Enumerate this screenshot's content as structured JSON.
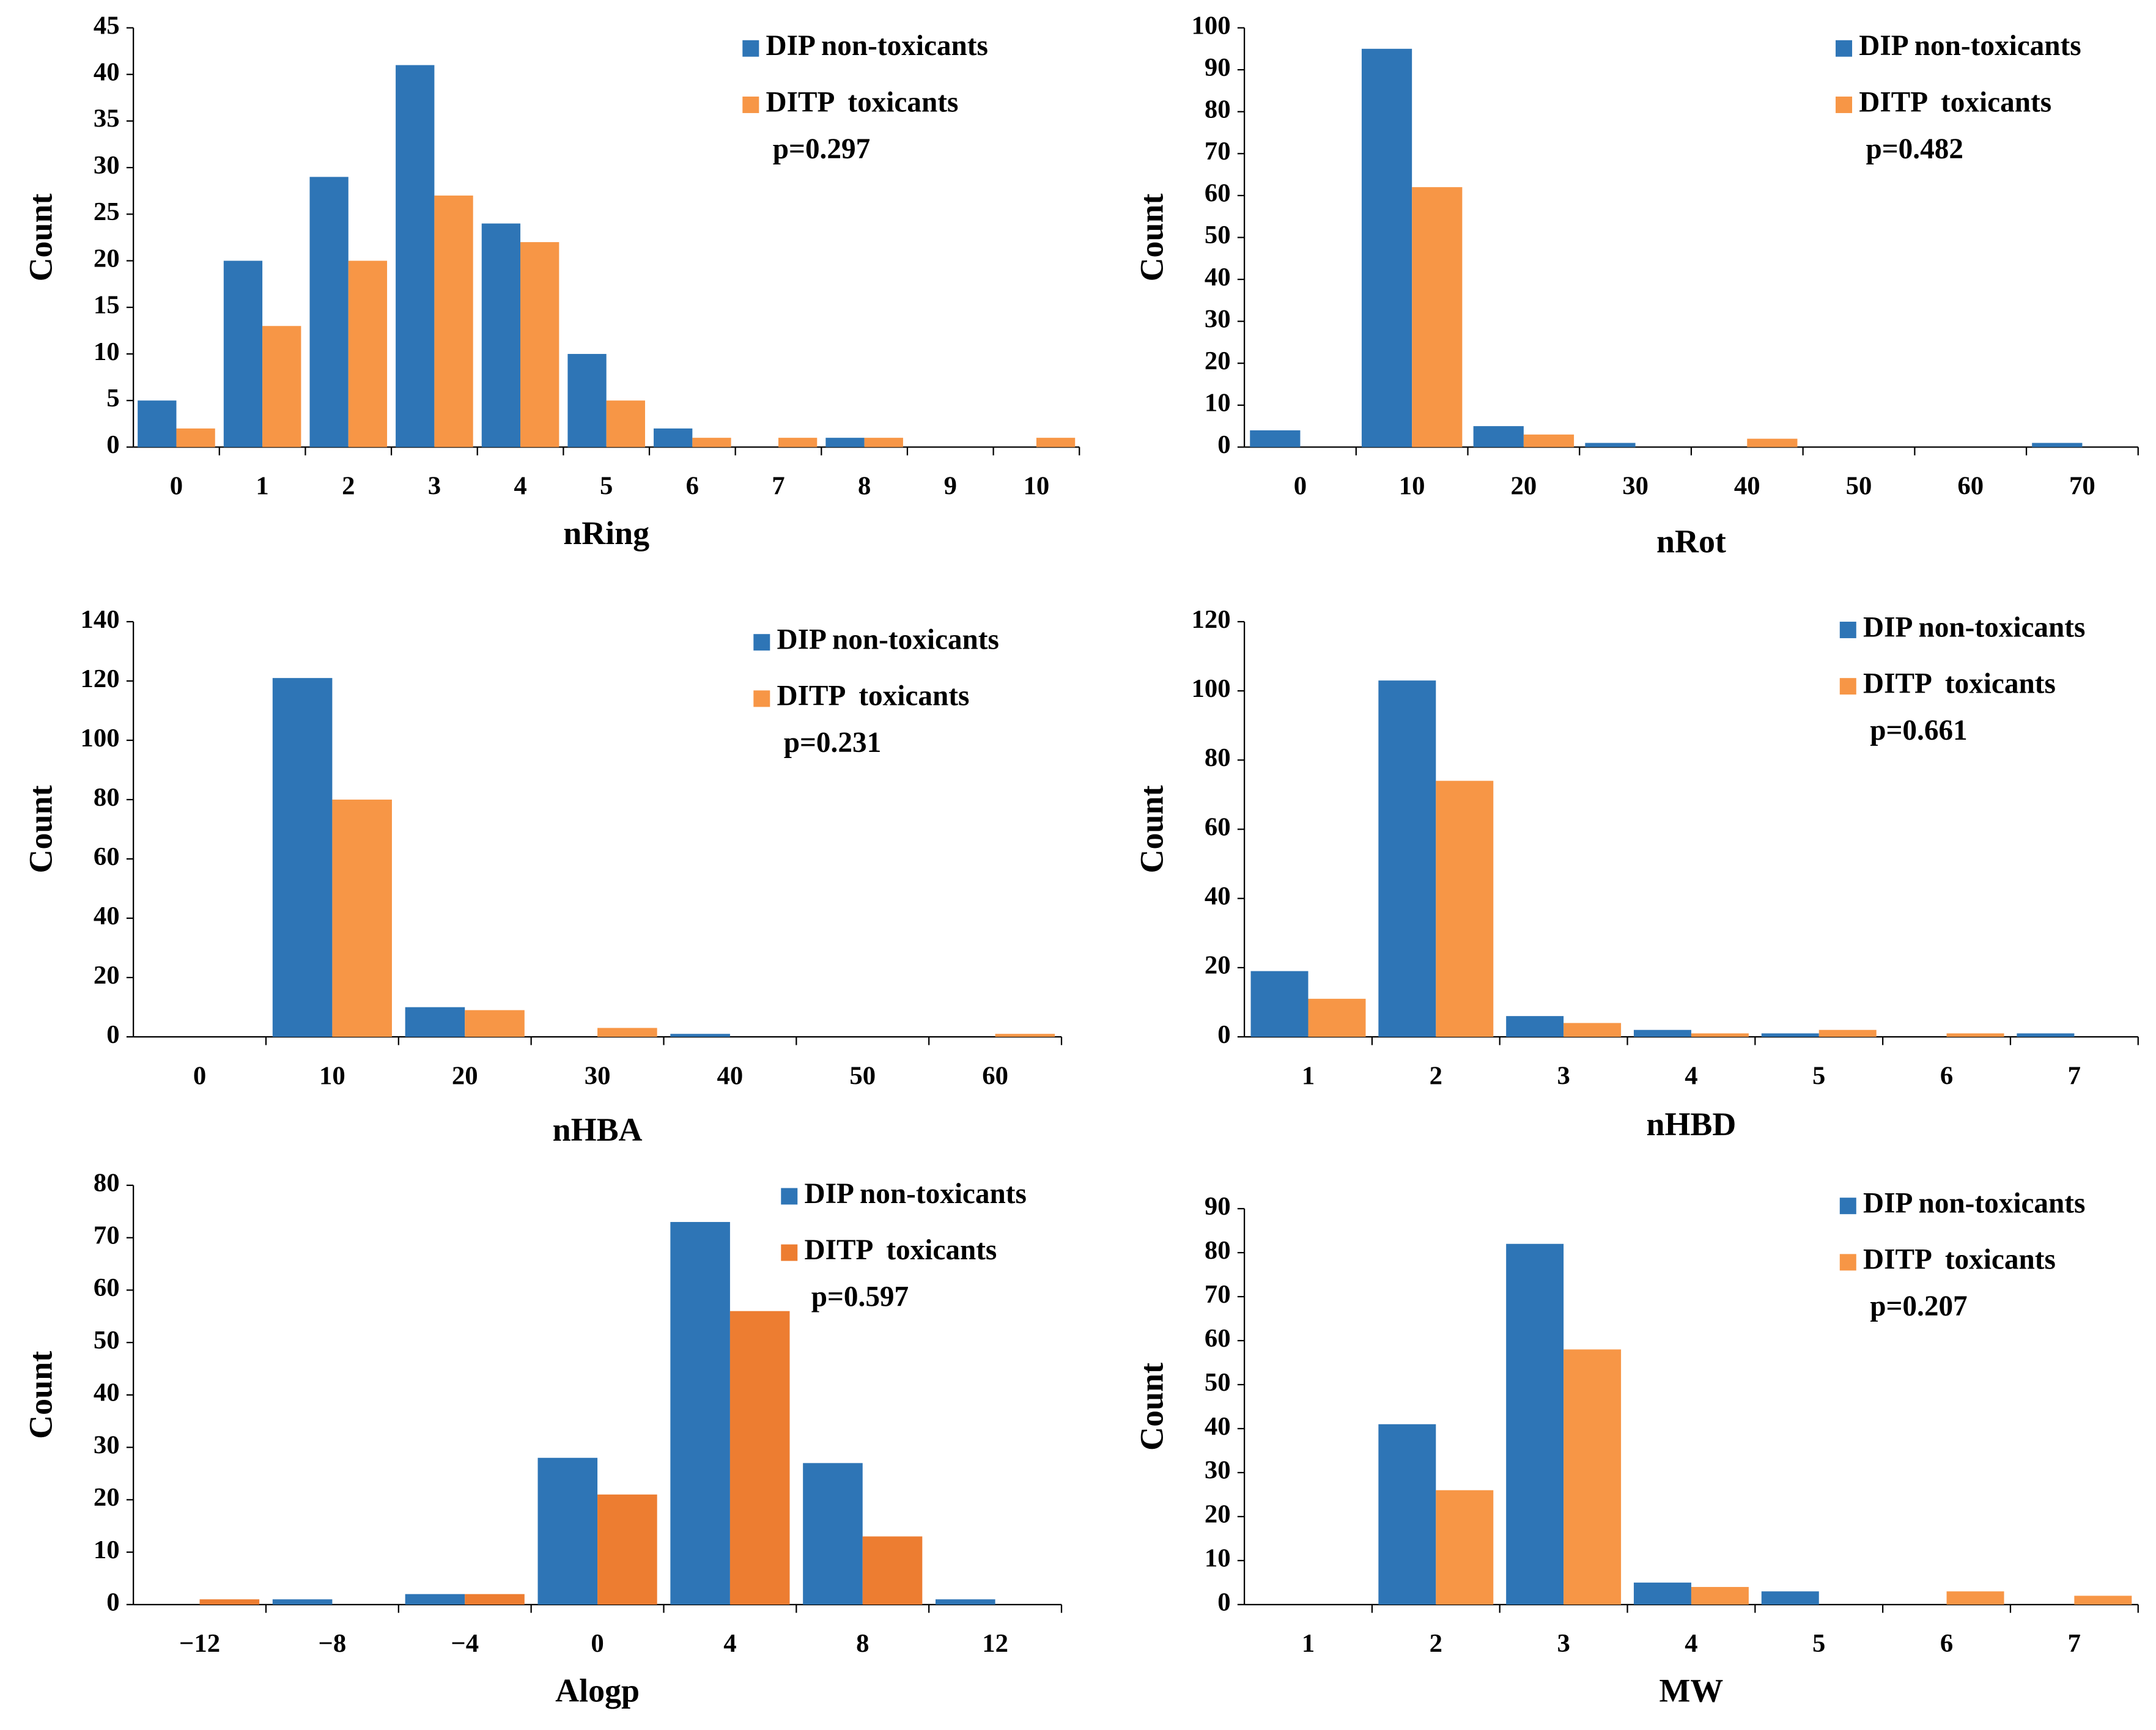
{
  "chart_data": [
    {
      "type": "bar",
      "xlabel": "nRing",
      "ylabel": "Count",
      "annotation": "p=0.297",
      "categories": [
        "0",
        "1",
        "2",
        "3",
        "4",
        "5",
        "6",
        "7",
        "8",
        "9",
        "10"
      ],
      "series": [
        {
          "name": "DIP non-toxicants",
          "color": "#2e75b6",
          "values": [
            5,
            20,
            29,
            41,
            24,
            10,
            2,
            0,
            1,
            0,
            0
          ]
        },
        {
          "name": "DITP  toxicants",
          "color": "#f79646",
          "values": [
            2,
            13,
            20,
            27,
            22,
            5,
            1,
            1,
            1,
            0,
            1
          ]
        }
      ],
      "ylim": [
        0,
        45
      ],
      "yticks": [
        0,
        5,
        10,
        15,
        20,
        25,
        30,
        35,
        40,
        45
      ]
    },
    {
      "type": "bar",
      "xlabel": "nRot",
      "ylabel": "Count",
      "annotation": "p=0.482",
      "categories": [
        "0",
        "10",
        "20",
        "30",
        "40",
        "50",
        "60",
        "70"
      ],
      "series": [
        {
          "name": "DIP non-toxicants",
          "color": "#2e75b6",
          "values": [
            4,
            95,
            5,
            1,
            0,
            0,
            0,
            1
          ]
        },
        {
          "name": "DITP  toxicants",
          "color": "#f79646",
          "values": [
            0,
            62,
            3,
            0,
            2,
            0,
            0,
            0
          ]
        }
      ],
      "ylim": [
        0,
        100
      ],
      "yticks": [
        0,
        10,
        20,
        30,
        40,
        50,
        60,
        70,
        80,
        90,
        100
      ]
    },
    {
      "type": "bar",
      "xlabel": "nHBA",
      "ylabel": "Count",
      "annotation": "p=0.231",
      "categories": [
        "0",
        "10",
        "20",
        "30",
        "40",
        "50",
        "60"
      ],
      "series": [
        {
          "name": "DIP non-toxicants",
          "color": "#2e75b6",
          "values": [
            0,
            121,
            10,
            0,
            1,
            0,
            0
          ]
        },
        {
          "name": "DITP  toxicants",
          "color": "#f79646",
          "values": [
            0,
            80,
            9,
            3,
            0,
            0,
            1
          ]
        }
      ],
      "ylim": [
        0,
        140
      ],
      "yticks": [
        0,
        20,
        40,
        60,
        80,
        100,
        120,
        140
      ]
    },
    {
      "type": "bar",
      "xlabel": "nHBD",
      "ylabel": "Count",
      "annotation": "p=0.661",
      "categories": [
        "1",
        "2",
        "3",
        "4",
        "5",
        "6",
        "7"
      ],
      "series": [
        {
          "name": "DIP non-toxicants",
          "color": "#2e75b6",
          "values": [
            19,
            103,
            6,
            2,
            1,
            0,
            1
          ]
        },
        {
          "name": "DITP  toxicants",
          "color": "#f79646",
          "values": [
            11,
            74,
            4,
            1,
            2,
            1,
            0
          ]
        }
      ],
      "ylim": [
        0,
        120
      ],
      "yticks": [
        0,
        20,
        40,
        60,
        80,
        100,
        120
      ]
    },
    {
      "type": "bar",
      "xlabel": "Alogp",
      "ylabel": "Count",
      "annotation": "p=0.597",
      "categories": [
        "−12",
        "−8",
        "−4",
        "0",
        "4",
        "8",
        "12"
      ],
      "series": [
        {
          "name": "DIP non-toxicants",
          "color": "#2e75b6",
          "values": [
            0,
            1,
            2,
            28,
            73,
            27,
            1
          ]
        },
        {
          "name": "DITP  toxicants",
          "color": "#ed7d31",
          "values": [
            1,
            0,
            2,
            21,
            56,
            13,
            0
          ]
        }
      ],
      "ylim": [
        0,
        80
      ],
      "yticks": [
        0,
        10,
        20,
        30,
        40,
        50,
        60,
        70,
        80
      ]
    },
    {
      "type": "bar",
      "xlabel": "MW",
      "ylabel": "Count",
      "annotation": "p=0.207",
      "categories": [
        "1",
        "2",
        "3",
        "4",
        "5",
        "6",
        "7"
      ],
      "series": [
        {
          "name": "DIP non-toxicants",
          "color": "#2e75b6",
          "values": [
            0,
            41,
            82,
            5,
            3,
            0,
            0
          ]
        },
        {
          "name": "DITP  toxicants",
          "color": "#f79646",
          "values": [
            0,
            26,
            58,
            4,
            0,
            3,
            2
          ]
        }
      ],
      "ylim": [
        0,
        90
      ],
      "yticks": [
        0,
        10,
        20,
        30,
        40,
        50,
        60,
        70,
        80,
        90
      ]
    }
  ]
}
